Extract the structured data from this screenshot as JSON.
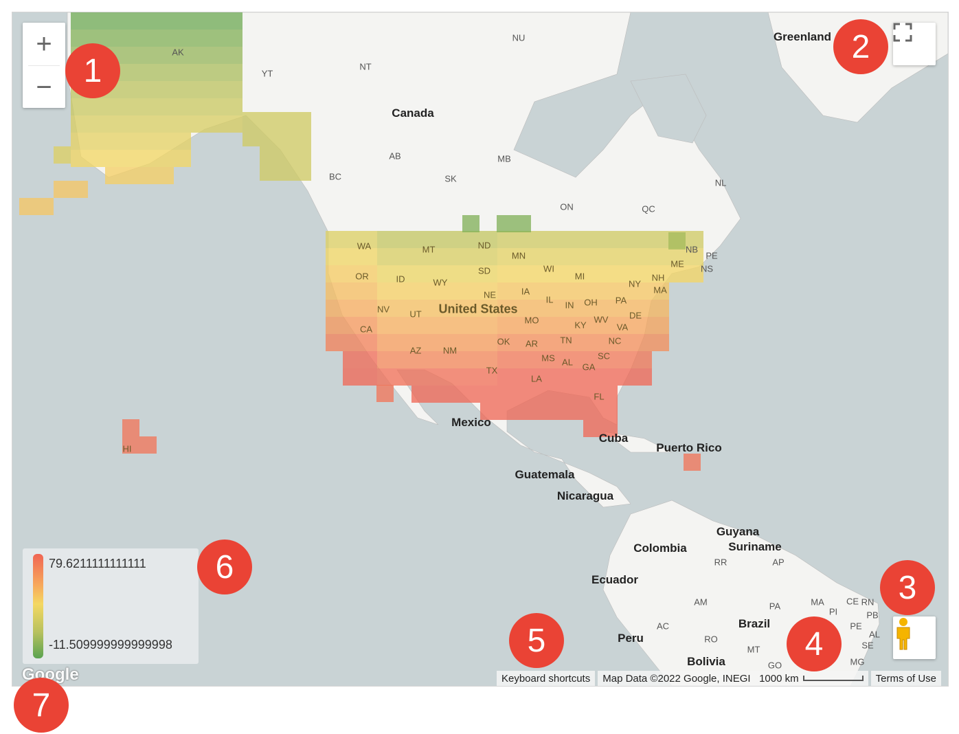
{
  "map": {
    "controls": {
      "zoom_in": "+",
      "zoom_out": "−",
      "fullscreen_icon": "fullscreen-icon",
      "pegman_icon": "street-view-pegman-icon"
    },
    "legend": {
      "max": "79.6211111111111",
      "min": "-11.509999999999998",
      "colors": [
        "#f06553",
        "#f7a95c",
        "#f4d862",
        "#b7c15e",
        "#5aa350"
      ]
    },
    "footer": {
      "keyboard": "Keyboard shortcuts",
      "attribution": "Map Data ©2022 Google, INEGI",
      "scale": "1000 km",
      "terms": "Terms of Use"
    },
    "logo": "Google",
    "countries": [
      "Canada",
      "Greenland",
      "Mexico",
      "Cuba",
      "Puerto Rico",
      "Guatemala",
      "Nicaragua",
      "Colombia",
      "Ecuador",
      "Peru",
      "Brazil",
      "Guyana",
      "Suriname",
      "Bolivia"
    ],
    "us_label": "United States",
    "regions": [
      "NU",
      "NT",
      "YT",
      "AK",
      "BC",
      "AB",
      "SK",
      "MB",
      "ON",
      "QC",
      "NL",
      "NB",
      "PE",
      "NS",
      "AM",
      "PA",
      "MA",
      "CE",
      "RN",
      "PB",
      "PE",
      "AL",
      "SE",
      "PI",
      "AC",
      "RO",
      "MT",
      "GO",
      "MG",
      "RR",
      "AP"
    ],
    "states": [
      "WA",
      "OR",
      "CA",
      "ID",
      "NV",
      "MT",
      "WY",
      "UT",
      "AZ",
      "NM",
      "ND",
      "SD",
      "NE",
      "MN",
      "IA",
      "MO",
      "WI",
      "IL",
      "MI",
      "IN",
      "OH",
      "KY",
      "TN",
      "AR",
      "OK",
      "TX",
      "LA",
      "MS",
      "AL",
      "GA",
      "FL",
      "SC",
      "NC",
      "VA",
      "WV",
      "PA",
      "NY",
      "ME",
      "NH",
      "MA",
      "DE",
      "HI"
    ]
  },
  "annotations": [
    "1",
    "2",
    "3",
    "4",
    "5",
    "6",
    "7"
  ]
}
